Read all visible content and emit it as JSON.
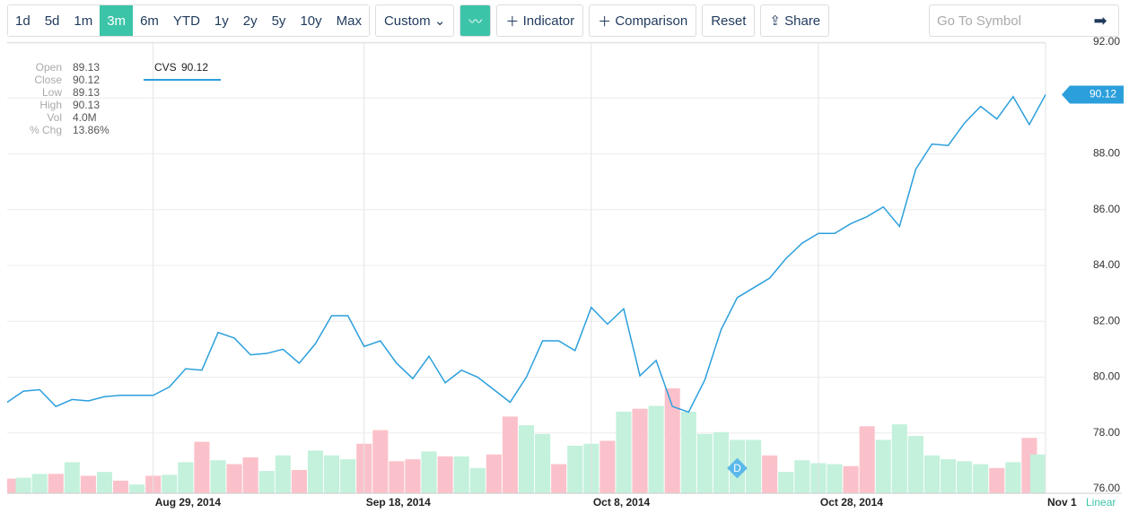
{
  "toolbar": {
    "ranges": [
      "1d",
      "5d",
      "1m",
      "3m",
      "6m",
      "YTD",
      "1y",
      "2y",
      "5y",
      "10y",
      "Max"
    ],
    "active_range": "3m",
    "custom": "Custom",
    "indicator": "Indicator",
    "comparison": "Comparison",
    "reset": "Reset",
    "share": "Share",
    "search_placeholder": "Go To Symbol"
  },
  "info": {
    "rows": [
      [
        "Open",
        "89.13"
      ],
      [
        "Close",
        "90.12"
      ],
      [
        "Low",
        "89.13"
      ],
      [
        "High",
        "90.13"
      ],
      [
        "Vol",
        "4.0M"
      ],
      [
        "% Chg",
        "13.86%"
      ]
    ]
  },
  "chart_data": {
    "type": "line",
    "series_name": "CVS",
    "color": "#2b9fdc",
    "categories": [
      null,
      null,
      null,
      null,
      null,
      null,
      null,
      null,
      null,
      "Aug 29, 2014",
      null,
      null,
      null,
      null,
      null,
      null,
      null,
      null,
      null,
      null,
      null,
      null,
      "Sep 18, 2014",
      null,
      null,
      null,
      null,
      null,
      null,
      null,
      null,
      null,
      null,
      null,
      null,
      null,
      "Oct 8, 2014",
      null,
      null,
      null,
      null,
      null,
      null,
      null,
      null,
      null,
      null,
      null,
      null,
      null,
      "Oct 28, 2014",
      null,
      null,
      null,
      null,
      null,
      null,
      null,
      null,
      null,
      null,
      null,
      null,
      null,
      "Nov 1"
    ],
    "values": [
      79.1,
      79.5,
      79.55,
      78.95,
      79.2,
      79.15,
      79.3,
      79.35,
      79.35,
      79.35,
      79.65,
      80.3,
      80.25,
      81.6,
      81.4,
      80.8,
      80.85,
      81.0,
      80.5,
      81.2,
      82.2,
      82.2,
      81.1,
      81.3,
      80.5,
      79.95,
      80.75,
      79.8,
      80.25,
      80.0,
      79.55,
      79.1,
      80.0,
      81.3,
      81.3,
      80.95,
      82.5,
      81.9,
      82.45,
      80.05,
      80.6,
      78.95,
      78.75,
      79.9,
      81.7,
      82.85,
      83.2,
      83.55,
      84.25,
      84.8,
      85.15,
      85.15,
      85.5,
      85.75,
      86.1,
      85.4,
      87.45,
      88.35,
      88.3,
      89.1,
      89.7,
      89.25,
      90.05,
      89.05,
      90.12
    ],
    "volumes": [
      1.5,
      1.6,
      2.0,
      2.0,
      3.2,
      1.8,
      2.2,
      1.3,
      0.9,
      1.8,
      1.9,
      3.2,
      5.3,
      3.4,
      3.0,
      3.7,
      2.3,
      3.9,
      2.4,
      4.4,
      3.9,
      3.5,
      5.1,
      6.5,
      3.3,
      3.5,
      4.3,
      3.8,
      3.8,
      2.6,
      4.0,
      7.9,
      7.0,
      6.1,
      3.0,
      4.9,
      5.1,
      5.4,
      8.4,
      8.7,
      9.0,
      10.8,
      8.4,
      6.1,
      6.3,
      5.5,
      5.5,
      3.9,
      2.2,
      3.4,
      3.1,
      3.0,
      2.8,
      6.9,
      5.5,
      7.1,
      5.9,
      3.9,
      3.5,
      3.3,
      3.0,
      2.6,
      3.2,
      5.7,
      4.0
    ],
    "volume_colors": [
      "#fbc1ca",
      "#c3f1dc",
      "#c3f1dc",
      "#fbc1ca",
      "#c3f1dc",
      "#fbc1ca",
      "#c3f1dc",
      "#fbc1ca",
      "#c3f1dc",
      "#fbc1ca",
      "#c3f1dc",
      "#c3f1dc",
      "#fbc1ca",
      "#c3f1dc",
      "#fbc1ca",
      "#fbc1ca",
      "#c3f1dc",
      "#c3f1dc",
      "#fbc1ca",
      "#c3f1dc",
      "#c3f1dc",
      "#c3f1dc",
      "#fbc1ca",
      "#fbc1ca",
      "#fbc1ca",
      "#fbc1ca",
      "#c3f1dc",
      "#fbc1ca",
      "#c3f1dc",
      "#c3f1dc",
      "#fbc1ca",
      "#fbc1ca",
      "#c3f1dc",
      "#c3f1dc",
      "#fbc1ca",
      "#c3f1dc",
      "#c3f1dc",
      "#fbc1ca",
      "#c3f1dc",
      "#fbc1ca",
      "#c3f1dc",
      "#fbc1ca",
      "#c3f1dc",
      "#c3f1dc",
      "#c3f1dc",
      "#c3f1dc",
      "#c3f1dc",
      "#fbc1ca",
      "#c3f1dc",
      "#c3f1dc",
      "#c3f1dc",
      "#c3f1dc",
      "#fbc1ca",
      "#fbc1ca",
      "#c3f1dc",
      "#c3f1dc",
      "#c3f1dc",
      "#c3f1dc",
      "#c3f1dc",
      "#c3f1dc",
      "#c3f1dc",
      "#fbc1ca",
      "#c3f1dc",
      "#fbc1ca",
      "#c3f1dc"
    ],
    "volume_lim": [
      0,
      12
    ],
    "ylim": [
      76,
      92.13
    ],
    "yticks": [
      {
        "value": 76,
        "label": "76.00"
      },
      {
        "value": 78,
        "label": "78.00"
      },
      {
        "value": 80,
        "label": "80.00"
      },
      {
        "value": 82,
        "label": "82.00"
      },
      {
        "value": 84,
        "label": "84.00"
      },
      {
        "value": 86,
        "label": "86.00"
      },
      {
        "value": 88,
        "label": "88.00"
      },
      {
        "value": 90,
        "label": "90.00"
      },
      {
        "value": 92,
        "label": "92.00"
      }
    ],
    "grid": true,
    "scale_label": "Linear",
    "marker": {
      "label": "D",
      "category_index": 45
    }
  }
}
